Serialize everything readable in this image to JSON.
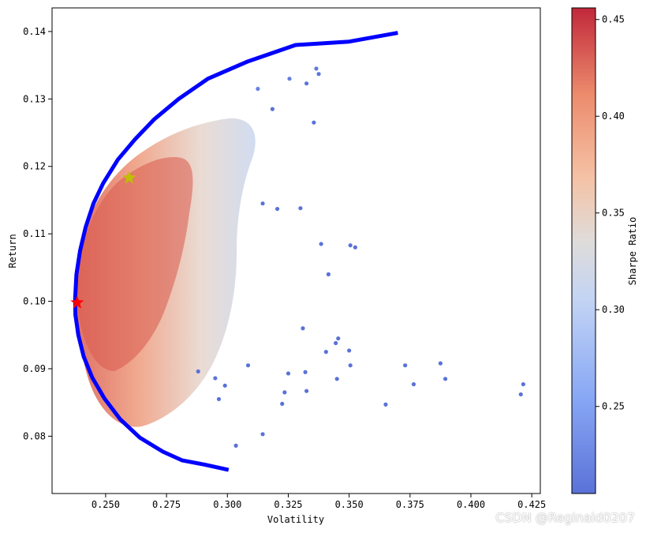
{
  "chart_data": {
    "type": "scatter",
    "title": "",
    "xlabel": "Volatility",
    "ylabel": "Return",
    "xlim": [
      0.228,
      0.4285
    ],
    "ylim": [
      0.0715,
      0.1435
    ],
    "xticks": [
      0.25,
      0.275,
      0.3,
      0.325,
      0.35,
      0.375,
      0.4,
      0.425
    ],
    "xtick_labels": [
      "0.250",
      "0.275",
      "0.300",
      "0.325",
      "0.350",
      "0.375",
      "0.400",
      "0.425"
    ],
    "yticks": [
      0.08,
      0.09,
      0.1,
      0.11,
      0.12,
      0.13,
      0.14
    ],
    "ytick_labels": [
      "0.08",
      "0.09",
      "0.10",
      "0.11",
      "0.12",
      "0.13",
      "0.14"
    ],
    "grid": false,
    "colormap": "coolwarm",
    "colorbar": {
      "label": "Sharpe Ratio",
      "range": [
        0.205,
        0.456
      ],
      "ticks": [
        0.25,
        0.3,
        0.35,
        0.4,
        0.45
      ],
      "tick_labels": [
        "0.25",
        "0.30",
        "0.35",
        "0.40",
        "0.45"
      ]
    },
    "scatter_points": [
      [
        0.4215,
        0.0877
      ],
      [
        0.4205,
        0.0862
      ],
      [
        0.3895,
        0.0885
      ],
      [
        0.3875,
        0.0908
      ],
      [
        0.3765,
        0.0877
      ],
      [
        0.373,
        0.0905
      ],
      [
        0.365,
        0.0847
      ],
      [
        0.3505,
        0.0905
      ],
      [
        0.35,
        0.0927
      ],
      [
        0.345,
        0.0885
      ],
      [
        0.3455,
        0.0945
      ],
      [
        0.3445,
        0.0938
      ],
      [
        0.3405,
        0.0925
      ],
      [
        0.3325,
        0.0867
      ],
      [
        0.332,
        0.0895
      ],
      [
        0.325,
        0.0893
      ],
      [
        0.3235,
        0.0865
      ],
      [
        0.3225,
        0.0848
      ],
      [
        0.3145,
        0.0803
      ],
      [
        0.3035,
        0.0786
      ],
      [
        0.3525,
        0.108
      ],
      [
        0.3505,
        0.1083
      ],
      [
        0.3415,
        0.104
      ],
      [
        0.3385,
        0.1085
      ],
      [
        0.3365,
        0.1345
      ],
      [
        0.3375,
        0.1337
      ],
      [
        0.3325,
        0.1323
      ],
      [
        0.3355,
        0.1265
      ],
      [
        0.3255,
        0.133
      ],
      [
        0.3185,
        0.1285
      ],
      [
        0.3125,
        0.1315
      ],
      [
        0.3205,
        0.1137
      ],
      [
        0.3145,
        0.1145
      ],
      [
        0.33,
        0.1138
      ],
      [
        0.3085,
        0.0905
      ],
      [
        0.2965,
        0.0855
      ],
      [
        0.295,
        0.0886
      ],
      [
        0.299,
        0.0875
      ],
      [
        0.288,
        0.0896
      ],
      [
        0.331,
        0.096
      ]
    ],
    "frontier": {
      "color": "#0000ff",
      "points": [
        [
          0.3005,
          0.075
        ],
        [
          0.2905,
          0.0758
        ],
        [
          0.2815,
          0.0764
        ],
        [
          0.2735,
          0.0777
        ],
        [
          0.264,
          0.0798
        ],
        [
          0.256,
          0.0825
        ],
        [
          0.2495,
          0.0856
        ],
        [
          0.2445,
          0.0887
        ],
        [
          0.241,
          0.0918
        ],
        [
          0.2388,
          0.095
        ],
        [
          0.2376,
          0.098
        ],
        [
          0.2375,
          0.1005
        ],
        [
          0.238,
          0.104
        ],
        [
          0.2395,
          0.1075
        ],
        [
          0.2418,
          0.111
        ],
        [
          0.245,
          0.1145
        ],
        [
          0.249,
          0.1175
        ],
        [
          0.255,
          0.121
        ],
        [
          0.262,
          0.124
        ],
        [
          0.27,
          0.127
        ],
        [
          0.28,
          0.13
        ],
        [
          0.292,
          0.133
        ],
        [
          0.308,
          0.1355
        ],
        [
          0.328,
          0.138
        ],
        [
          0.35,
          0.1385
        ],
        [
          0.37,
          0.1398
        ]
      ]
    },
    "max_sharpe_marker": {
      "x": 0.2597,
      "y": 0.1183,
      "color": "#bfbf00",
      "shape": "star"
    },
    "min_volatility_marker": {
      "x": 0.2383,
      "y": 0.0998,
      "color": "#ff0000",
      "shape": "star"
    }
  },
  "watermark": "CSDN @Reginald0207"
}
